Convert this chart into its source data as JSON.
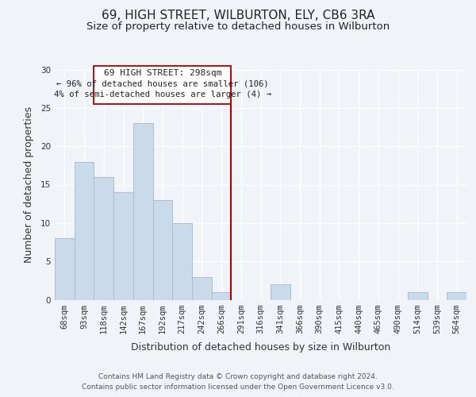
{
  "title": "69, HIGH STREET, WILBURTON, ELY, CB6 3RA",
  "subtitle": "Size of property relative to detached houses in Wilburton",
  "xlabel": "Distribution of detached houses by size in Wilburton",
  "ylabel": "Number of detached properties",
  "bar_labels": [
    "68sqm",
    "93sqm",
    "118sqm",
    "142sqm",
    "167sqm",
    "192sqm",
    "217sqm",
    "242sqm",
    "266sqm",
    "291sqm",
    "316sqm",
    "341sqm",
    "366sqm",
    "390sqm",
    "415sqm",
    "440sqm",
    "465sqm",
    "490sqm",
    "514sqm",
    "539sqm",
    "564sqm"
  ],
  "bar_values": [
    8,
    18,
    16,
    14,
    23,
    13,
    10,
    3,
    1,
    0,
    0,
    2,
    0,
    0,
    0,
    0,
    0,
    0,
    1,
    0,
    1
  ],
  "bar_color": "#c9daea",
  "bar_edge_color": "#a8bfcf",
  "vline_color": "#aa0000",
  "ylim": [
    0,
    30
  ],
  "yticks": [
    0,
    5,
    10,
    15,
    20,
    25,
    30
  ],
  "annotation_title": "69 HIGH STREET: 298sqm",
  "annotation_line1": "← 96% of detached houses are smaller (106)",
  "annotation_line2": "4% of semi-detached houses are larger (4) →",
  "footer_line1": "Contains HM Land Registry data © Crown copyright and database right 2024.",
  "footer_line2": "Contains public sector information licensed under the Open Government Licence v3.0.",
  "background_color": "#f0f4f8",
  "grid_color": "#ffffff",
  "title_fontsize": 11,
  "subtitle_fontsize": 9.5,
  "axis_label_fontsize": 9,
  "tick_fontsize": 7.5,
  "footer_fontsize": 6.5,
  "annot_fontsize": 8
}
